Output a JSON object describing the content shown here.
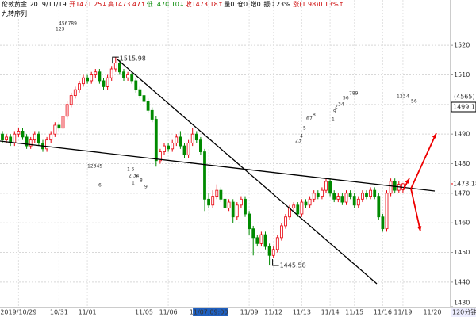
{
  "header": {
    "symbol": "伦敦黄金",
    "date": "2019/11/19",
    "open": "开1471.25↓",
    "high": "高1473.47↑",
    "low": "低1470.10↓",
    "close": "收1473.18↑",
    "volume": "量0",
    "position": "仓0",
    "increase": "增0",
    "amplitude": "振0.23%",
    "change": "涨(1.98)0.13%↑",
    "indicator": "九转序列"
  },
  "chart_data": {
    "type": "candlestick",
    "categories": [
      null,
      null,
      null,
      null,
      "2019/10/29",
      null,
      null,
      null,
      null,
      null,
      null,
      null,
      null,
      null,
      "10/31",
      null,
      null,
      null,
      null,
      null,
      null,
      "11/01",
      null,
      null,
      null,
      null,
      null,
      null,
      null,
      null,
      null,
      null,
      null,
      null,
      null,
      "11/05",
      null,
      null,
      null,
      null,
      null,
      "11/06",
      null,
      null,
      null,
      null,
      null,
      null,
      null,
      null,
      null,
      "11/07,09:00",
      null,
      null,
      null,
      null,
      null,
      null,
      null,
      null,
      null,
      "11/09",
      null,
      null,
      null,
      null,
      null,
      "11/12",
      null,
      null,
      null,
      null,
      null,
      null,
      "11/13",
      null,
      null,
      null,
      null,
      null,
      null,
      "11/14",
      null,
      null,
      null,
      null,
      null,
      "11/15",
      null,
      null,
      null,
      null,
      null,
      null,
      "11/16",
      null,
      null,
      null,
      null,
      "11/19"
    ],
    "next_label": "11/20",
    "open": [
      1490,
      1488,
      1489,
      1487,
      1490,
      1491,
      1489,
      1486,
      1488,
      1490,
      1487,
      1485,
      1488,
      1490,
      1493,
      1492,
      1496,
      1500,
      1503,
      1505,
      1507,
      1509,
      1508,
      1510,
      1511,
      1508,
      1506,
      1509,
      1512,
      1514,
      1511,
      1509,
      1510,
      1508,
      1505,
      1503,
      1501,
      1498,
      1495,
      1481,
      1484,
      1486,
      1485,
      1487,
      1489,
      1486,
      1483,
      1487,
      1490,
      1488,
      1484,
      1468,
      1466,
      1469,
      1471,
      1468,
      1465,
      1467,
      1462,
      1466,
      1468,
      1463,
      1458,
      1455,
      1453,
      1456,
      1452,
      1449,
      1451,
      1455,
      1459,
      1462,
      1465,
      1466,
      1463,
      1467,
      1466,
      1468,
      1470,
      1469,
      1471,
      1474,
      1470,
      1468,
      1469,
      1467,
      1470,
      1469,
      1466,
      1468,
      1470,
      1469,
      1471,
      1469,
      1462,
      1458,
      1470,
      1474,
      1471,
      1471.25
    ],
    "high": [
      1491,
      1490,
      1490,
      1491,
      1492,
      1492,
      1490,
      1489,
      1491,
      1491,
      1488,
      1489,
      1491,
      1494,
      1494,
      1497,
      1501,
      1504,
      1506,
      1508,
      1510,
      1510,
      1511,
      1512,
      1512,
      1509,
      1510,
      1513,
      1515.98,
      1515,
      1512,
      1511,
      1511,
      1509,
      1506,
      1504,
      1502,
      1499,
      1496,
      1485,
      1487,
      1487,
      1488,
      1490,
      1491,
      1487,
      1488,
      1492,
      1491,
      1489,
      1485,
      1470,
      1471,
      1473,
      1472,
      1469,
      1468,
      1468,
      1467,
      1469,
      1469,
      1464,
      1459,
      1456,
      1457,
      1457,
      1453,
      1452,
      1456,
      1460,
      1463,
      1466,
      1467,
      1467,
      1468,
      1468,
      1469,
      1471,
      1471,
      1472,
      1475,
      1475,
      1471,
      1470,
      1470,
      1471,
      1471,
      1470,
      1469,
      1471,
      1471,
      1472,
      1472,
      1470,
      1463,
      1471,
      1475,
      1475,
      1474,
      1473.47
    ],
    "low": [
      1487,
      1487,
      1486,
      1486,
      1489,
      1488,
      1485,
      1485,
      1487,
      1486,
      1484,
      1484,
      1487,
      1489,
      1491,
      1491,
      1495,
      1499,
      1502,
      1504,
      1506,
      1507,
      1507,
      1509,
      1507,
      1505,
      1505,
      1508,
      1511,
      1510,
      1508,
      1508,
      1507,
      1504,
      1502,
      1500,
      1497,
      1494,
      1479,
      1480,
      1483,
      1484,
      1484,
      1486,
      1485,
      1482,
      1482,
      1486,
      1487,
      1483,
      1464,
      1465,
      1465,
      1468,
      1467,
      1464,
      1464,
      1460,
      1461,
      1465,
      1462,
      1456,
      1449,
      1452,
      1452,
      1451,
      1445.58,
      1448,
      1450,
      1454,
      1458,
      1461,
      1464,
      1462,
      1462,
      1465,
      1465,
      1467,
      1468,
      1468,
      1470,
      1469,
      1467,
      1467,
      1466,
      1466,
      1468,
      1465,
      1465,
      1467,
      1468,
      1468,
      1468,
      1461,
      1457,
      1457,
      1469,
      1470,
      1470,
      1470.1
    ],
    "close": [
      1488,
      1489,
      1487,
      1490,
      1491,
      1489,
      1486,
      1488,
      1490,
      1487,
      1485,
      1488,
      1490,
      1493,
      1492,
      1496,
      1500,
      1503,
      1505,
      1507,
      1509,
      1508,
      1510,
      1511,
      1508,
      1506,
      1509,
      1512,
      1514,
      1511,
      1509,
      1510,
      1508,
      1505,
      1503,
      1501,
      1498,
      1495,
      1481,
      1484,
      1486,
      1485,
      1487,
      1489,
      1486,
      1483,
      1487,
      1490,
      1488,
      1484,
      1468,
      1466,
      1469,
      1471,
      1468,
      1465,
      1467,
      1462,
      1466,
      1468,
      1463,
      1458,
      1455,
      1453,
      1456,
      1452,
      1449,
      1451,
      1455,
      1459,
      1462,
      1465,
      1466,
      1463,
      1467,
      1466,
      1468,
      1470,
      1469,
      1471,
      1474,
      1470,
      1468,
      1469,
      1467,
      1470,
      1469,
      1466,
      1468,
      1470,
      1469,
      1471,
      1469,
      1462,
      1458,
      1470,
      1474,
      1471,
      1473,
      1473.18
    ],
    "up_color": "#e8000b",
    "down_color": "#008a00",
    "ylim": [
      1431.4,
      1535.3
    ],
    "yticks": [
      1430,
      1440,
      1450,
      1460,
      1470,
      1480,
      1490,
      1500,
      1510,
      1520
    ],
    "grid": true,
    "high_label": "1515.98",
    "low_label": "1445.58",
    "cursor_count": "(4565)",
    "cursor_price": {
      "value": 1499.15,
      "label": "1499.15"
    },
    "last_price": {
      "value": 1473.18,
      "label": "1473.18"
    },
    "period": "120分钟",
    "nine_turn_labels": [
      "456789",
      "123",
      "12345",
      "1 5",
      "2 34",
      "6",
      "7",
      "8",
      "9",
      "1",
      "23",
      "4",
      "5",
      "6",
      "7",
      "8",
      "9",
      "1",
      "2",
      "34",
      "56",
      "789",
      "123",
      "4",
      "56"
    ]
  }
}
